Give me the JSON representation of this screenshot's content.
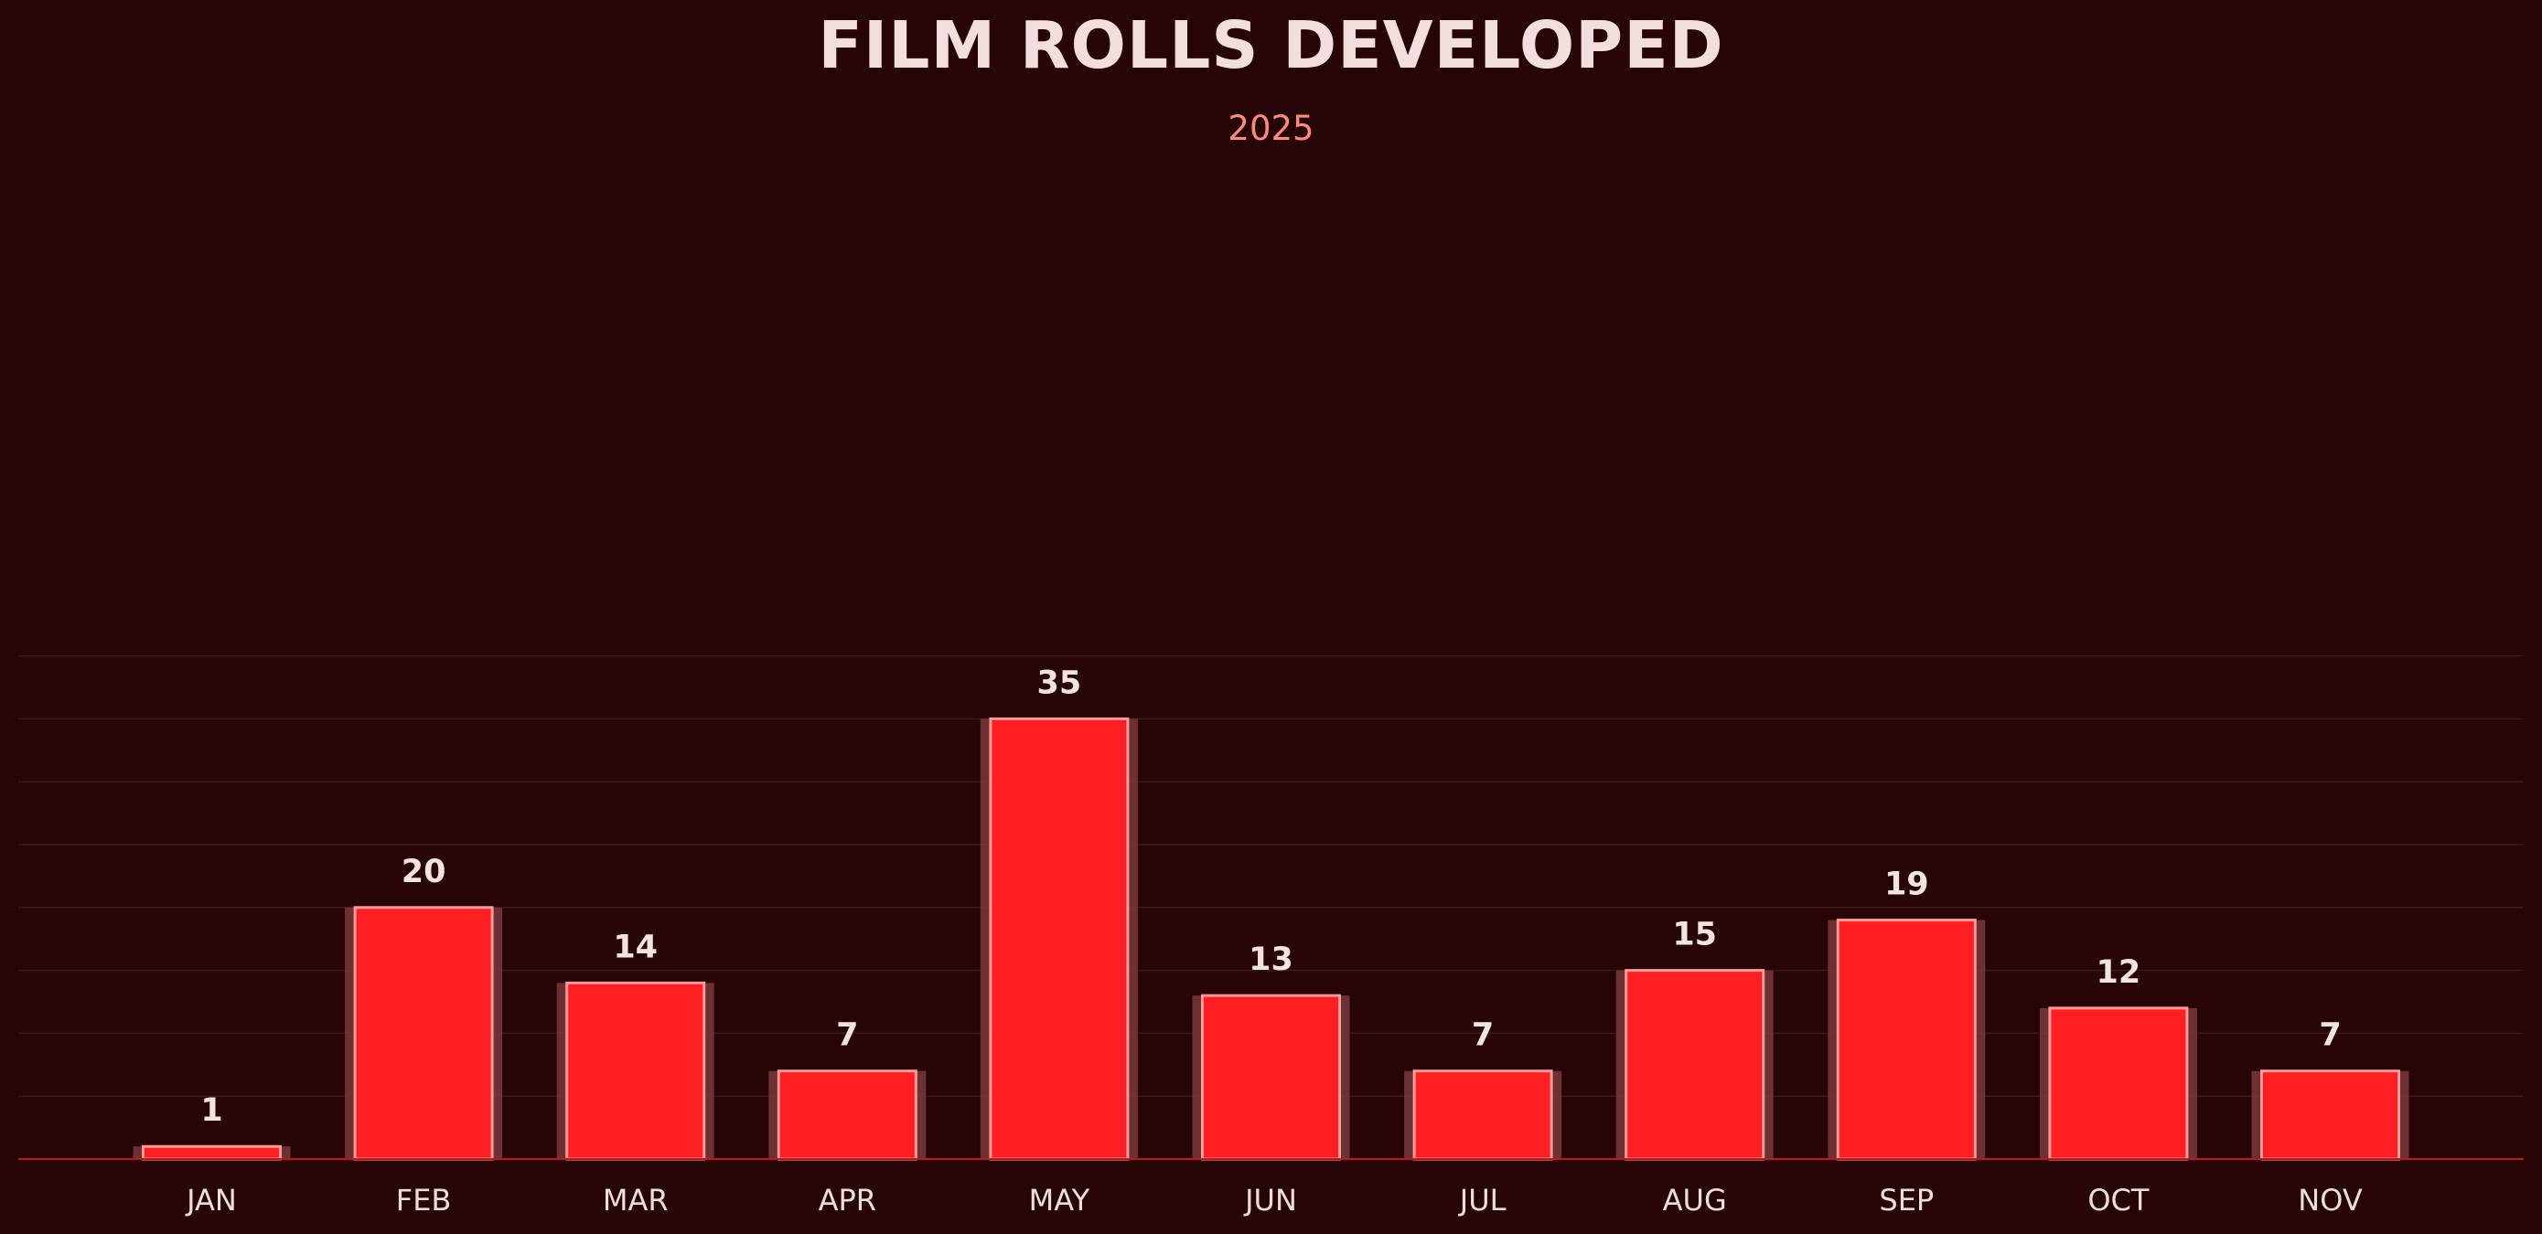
{
  "chart_data": {
    "type": "bar",
    "title": "FILM ROLLS DEVELOPED",
    "subtitle": "2025",
    "categories": [
      "JAN",
      "FEB",
      "MAR",
      "APR",
      "MAY",
      "JUN",
      "JUL",
      "AUG",
      "SEP",
      "OCT",
      "NOV"
    ],
    "values": [
      1,
      20,
      14,
      7,
      35,
      13,
      7,
      15,
      19,
      12,
      7
    ],
    "xlabel": "",
    "ylabel": "",
    "ylim": [
      0,
      40
    ],
    "grid": true,
    "data_labels": true,
    "colors": {
      "background": "#270405",
      "bar_fill": "#ff1f22",
      "bar_edge": "#ff9a9a",
      "bar_shadow": "#7a3a3c",
      "grid": "#3d1a1b",
      "axis": "#c01818"
    }
  }
}
